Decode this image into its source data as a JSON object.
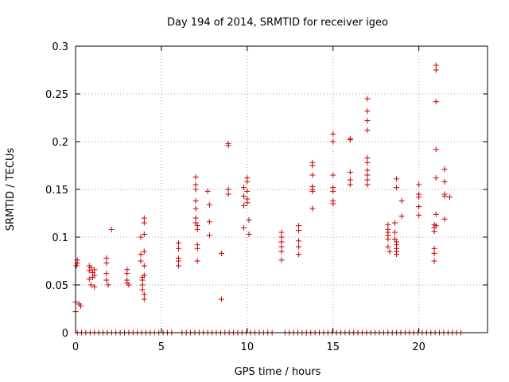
{
  "chart_data": {
    "type": "scatter",
    "title": "Day 194 of 2014, SRMTID for receiver igeo",
    "xlabel": "GPS time / hours",
    "ylabel": "SRMTID / TECUs",
    "xlim": [
      0,
      24
    ],
    "ylim": [
      0,
      0.3
    ],
    "x_ticks": [
      0,
      5,
      10,
      15,
      20
    ],
    "x_tick_labels": [
      "0",
      "5",
      "10",
      "15",
      "20"
    ],
    "y_ticks": [
      0,
      0.05,
      0.1,
      0.15,
      0.2,
      0.25,
      0.3
    ],
    "y_tick_labels": [
      "0",
      "0.05",
      "0.1",
      "0.15",
      "0.2",
      "0.25",
      "0.3"
    ],
    "grid": true,
    "marker": "+",
    "color": "#cc0000",
    "series": [
      {
        "name": "SRMTID",
        "points": [
          [
            0.0,
            0.05
          ],
          [
            0.0,
            0.032
          ],
          [
            0.0,
            0.022
          ],
          [
            0.05,
            0.07
          ],
          [
            0.1,
            0.073
          ],
          [
            0.1,
            0.076
          ],
          [
            0.2,
            0.03
          ],
          [
            0.3,
            0.028
          ],
          [
            0.8,
            0.07
          ],
          [
            0.8,
            0.065
          ],
          [
            0.8,
            0.056
          ],
          [
            0.9,
            0.068
          ],
          [
            0.9,
            0.05
          ],
          [
            1.0,
            0.063
          ],
          [
            1.0,
            0.058
          ],
          [
            1.1,
            0.06
          ],
          [
            1.1,
            0.066
          ],
          [
            1.1,
            0.048
          ],
          [
            1.8,
            0.078
          ],
          [
            1.8,
            0.073
          ],
          [
            1.8,
            0.062
          ],
          [
            1.8,
            0.055
          ],
          [
            1.9,
            0.05
          ],
          [
            2.1,
            0.108
          ],
          [
            3.0,
            0.066
          ],
          [
            3.0,
            0.062
          ],
          [
            3.0,
            0.055
          ],
          [
            3.0,
            0.052
          ],
          [
            3.1,
            0.05
          ],
          [
            3.8,
            0.1
          ],
          [
            3.8,
            0.082
          ],
          [
            3.8,
            0.075
          ],
          [
            3.9,
            0.058
          ],
          [
            3.9,
            0.055
          ],
          [
            3.9,
            0.05
          ],
          [
            3.9,
            0.045
          ],
          [
            4.0,
            0.12
          ],
          [
            4.0,
            0.115
          ],
          [
            4.0,
            0.103
          ],
          [
            4.0,
            0.085
          ],
          [
            4.0,
            0.07
          ],
          [
            4.0,
            0.06
          ],
          [
            4.0,
            0.04
          ],
          [
            4.0,
            0.035
          ],
          [
            6.0,
            0.094
          ],
          [
            6.0,
            0.088
          ],
          [
            6.0,
            0.078
          ],
          [
            6.0,
            0.075
          ],
          [
            6.0,
            0.07
          ],
          [
            7.0,
            0.163
          ],
          [
            7.0,
            0.155
          ],
          [
            7.0,
            0.15
          ],
          [
            7.0,
            0.138
          ],
          [
            7.0,
            0.13
          ],
          [
            7.0,
            0.12
          ],
          [
            7.0,
            0.115
          ],
          [
            7.1,
            0.112
          ],
          [
            7.1,
            0.108
          ],
          [
            7.1,
            0.092
          ],
          [
            7.1,
            0.088
          ],
          [
            7.1,
            0.075
          ],
          [
            7.7,
            0.148
          ],
          [
            7.8,
            0.134
          ],
          [
            7.8,
            0.116
          ],
          [
            7.8,
            0.102
          ],
          [
            8.5,
            0.083
          ],
          [
            8.5,
            0.035
          ],
          [
            8.9,
            0.198
          ],
          [
            8.9,
            0.196
          ],
          [
            8.9,
            0.15
          ],
          [
            8.9,
            0.145
          ],
          [
            9.8,
            0.152
          ],
          [
            9.8,
            0.143
          ],
          [
            9.8,
            0.133
          ],
          [
            9.8,
            0.11
          ],
          [
            10.0,
            0.162
          ],
          [
            10.0,
            0.158
          ],
          [
            10.0,
            0.148
          ],
          [
            10.0,
            0.14
          ],
          [
            10.0,
            0.136
          ],
          [
            10.1,
            0.118
          ],
          [
            10.1,
            0.103
          ],
          [
            12.0,
            0.105
          ],
          [
            12.0,
            0.1
          ],
          [
            12.0,
            0.095
          ],
          [
            12.0,
            0.09
          ],
          [
            12.0,
            0.085
          ],
          [
            12.0,
            0.076
          ],
          [
            13.0,
            0.112
          ],
          [
            13.0,
            0.107
          ],
          [
            13.0,
            0.096
          ],
          [
            13.0,
            0.09
          ],
          [
            13.0,
            0.082
          ],
          [
            13.8,
            0.178
          ],
          [
            13.8,
            0.175
          ],
          [
            13.8,
            0.165
          ],
          [
            13.8,
            0.153
          ],
          [
            13.8,
            0.15
          ],
          [
            13.8,
            0.148
          ],
          [
            13.8,
            0.13
          ],
          [
            15.0,
            0.208
          ],
          [
            15.0,
            0.2
          ],
          [
            15.0,
            0.165
          ],
          [
            15.0,
            0.152
          ],
          [
            15.0,
            0.148
          ],
          [
            15.0,
            0.138
          ],
          [
            15.0,
            0.135
          ],
          [
            16.0,
            0.203
          ],
          [
            16.0,
            0.202
          ],
          [
            16.0,
            0.168
          ],
          [
            16.0,
            0.16
          ],
          [
            16.0,
            0.155
          ],
          [
            17.0,
            0.245
          ],
          [
            17.0,
            0.232
          ],
          [
            17.0,
            0.222
          ],
          [
            17.0,
            0.212
          ],
          [
            17.0,
            0.183
          ],
          [
            17.0,
            0.178
          ],
          [
            17.0,
            0.17
          ],
          [
            17.0,
            0.165
          ],
          [
            17.0,
            0.16
          ],
          [
            17.0,
            0.155
          ],
          [
            18.2,
            0.113
          ],
          [
            18.2,
            0.108
          ],
          [
            18.2,
            0.105
          ],
          [
            18.2,
            0.102
          ],
          [
            18.2,
            0.098
          ],
          [
            18.2,
            0.09
          ],
          [
            18.3,
            0.085
          ],
          [
            18.6,
            0.115
          ],
          [
            18.6,
            0.105
          ],
          [
            18.6,
            0.098
          ],
          [
            18.7,
            0.095
          ],
          [
            18.7,
            0.092
          ],
          [
            18.7,
            0.088
          ],
          [
            18.7,
            0.085
          ],
          [
            18.7,
            0.082
          ],
          [
            18.7,
            0.161
          ],
          [
            18.7,
            0.152
          ],
          [
            19.0,
            0.138
          ],
          [
            19.0,
            0.122
          ],
          [
            20.0,
            0.155
          ],
          [
            20.0,
            0.145
          ],
          [
            20.0,
            0.142
          ],
          [
            20.0,
            0.132
          ],
          [
            20.0,
            0.123
          ],
          [
            20.9,
            0.113
          ],
          [
            20.9,
            0.11
          ],
          [
            20.9,
            0.106
          ],
          [
            20.9,
            0.088
          ],
          [
            20.9,
            0.083
          ],
          [
            20.9,
            0.075
          ],
          [
            21.0,
            0.28
          ],
          [
            21.0,
            0.275
          ],
          [
            21.0,
            0.242
          ],
          [
            21.0,
            0.192
          ],
          [
            21.0,
            0.162
          ],
          [
            21.0,
            0.124
          ],
          [
            21.0,
            0.112
          ],
          [
            21.5,
            0.171
          ],
          [
            21.5,
            0.158
          ],
          [
            21.5,
            0.145
          ],
          [
            21.5,
            0.143
          ],
          [
            21.5,
            0.119
          ],
          [
            21.8,
            0.142
          ]
        ],
        "zero_x": [
          0.1,
          0.35,
          0.6,
          0.85,
          1.1,
          1.35,
          1.6,
          1.85,
          2.1,
          2.35,
          2.6,
          2.85,
          3.1,
          3.35,
          3.6,
          3.85,
          4.1,
          4.35,
          4.6,
          4.85,
          5.1,
          5.35,
          5.6,
          6.2,
          6.45,
          6.7,
          6.95,
          7.2,
          7.45,
          7.7,
          7.95,
          8.2,
          8.45,
          8.7,
          8.95,
          9.2,
          9.45,
          9.7,
          9.95,
          10.2,
          10.45,
          10.7,
          10.95,
          11.2,
          11.45,
          12.2,
          12.45,
          12.7,
          12.95,
          13.2,
          13.45,
          13.7,
          13.95,
          14.2,
          14.45,
          14.7,
          14.95,
          15.2,
          15.45,
          15.7,
          15.95,
          16.2,
          16.45,
          16.7,
          16.95,
          17.2,
          17.45,
          17.7,
          17.95,
          18.2,
          18.45,
          18.7,
          18.95,
          19.2,
          19.45,
          19.7,
          19.95,
          20.2,
          20.45,
          20.7,
          20.95,
          21.2,
          21.45,
          21.7,
          21.95,
          22.2,
          22.45
        ]
      }
    ]
  }
}
